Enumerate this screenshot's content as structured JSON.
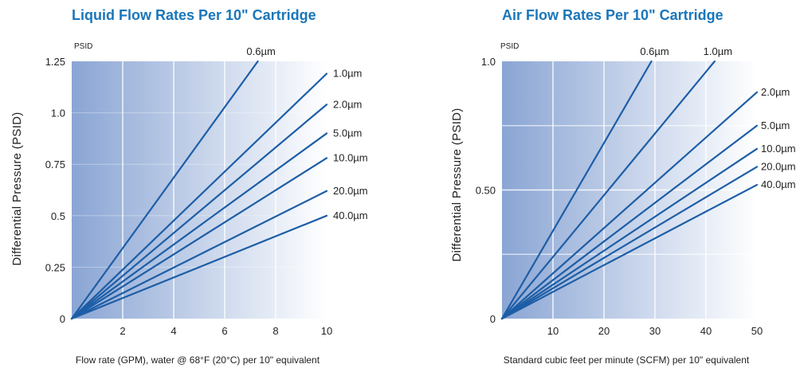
{
  "chart_data": [
    {
      "type": "line",
      "title": "Liquid Flow Rates Per 10\" Cartridge",
      "ylabel": "Differential Pressure (PSID)",
      "yunit": "PSID",
      "xlabel": "Flow rate (GPM), water @ 68°F (20°C) per 10\" equivalent",
      "xlim": [
        0,
        10
      ],
      "ylim": [
        0,
        1.25
      ],
      "xticks": [
        "2",
        "4",
        "6",
        "8",
        "10"
      ],
      "xtick_values": [
        2,
        4,
        6,
        8,
        10
      ],
      "yticks": [
        "0",
        "0.25",
        "0.5",
        "0.75",
        "1.0",
        "1.25"
      ],
      "ytick_values": [
        0,
        0.25,
        0.5,
        0.75,
        1.0,
        1.25
      ],
      "grid": "vertical",
      "series": [
        {
          "name": "0.6µm",
          "x": [
            0,
            7.3
          ],
          "y": [
            0,
            1.25
          ]
        },
        {
          "name": "1.0µm",
          "x": [
            0,
            10
          ],
          "y": [
            0,
            1.19
          ]
        },
        {
          "name": "2.0µm",
          "x": [
            0,
            10
          ],
          "y": [
            0,
            1.04
          ]
        },
        {
          "name": "5.0µm",
          "x": [
            0,
            10
          ],
          "y": [
            0,
            0.9
          ]
        },
        {
          "name": "10.0µm",
          "x": [
            0,
            10
          ],
          "y": [
            0,
            0.78
          ]
        },
        {
          "name": "20.0µm",
          "x": [
            0,
            10
          ],
          "y": [
            0,
            0.62
          ]
        },
        {
          "name": "40.0µm",
          "x": [
            0,
            10
          ],
          "y": [
            0,
            0.5
          ]
        }
      ]
    },
    {
      "type": "line",
      "title": "Air Flow Rates Per 10\" Cartridge",
      "ylabel": "Differential Pressure (PSID)",
      "yunit": "PSID",
      "xlabel": "Standard cubic feet per minute (SCFM) per 10\" equivalent",
      "xlim": [
        0,
        50
      ],
      "ylim": [
        0,
        1.0
      ],
      "xticks": [
        "10",
        "20",
        "30",
        "40",
        "50"
      ],
      "xtick_values": [
        10,
        20,
        30,
        40,
        50
      ],
      "yticks": [
        "0",
        "0.50",
        "1.0"
      ],
      "ytick_values": [
        0,
        0.5,
        1.0
      ],
      "grid": "both",
      "series": [
        {
          "name": "0.6µm",
          "x": [
            0,
            29.3
          ],
          "y": [
            0,
            1.0
          ]
        },
        {
          "name": "1.0µm",
          "x": [
            0,
            41.7
          ],
          "y": [
            0,
            1.0
          ]
        },
        {
          "name": "2.0µm",
          "x": [
            0,
            50
          ],
          "y": [
            0,
            0.88
          ]
        },
        {
          "name": "5.0µm",
          "x": [
            0,
            50
          ],
          "y": [
            0,
            0.75
          ]
        },
        {
          "name": "10.0µm",
          "x": [
            0,
            50
          ],
          "y": [
            0,
            0.66
          ]
        },
        {
          "name": "20.0µm",
          "x": [
            0,
            50
          ],
          "y": [
            0,
            0.59
          ]
        },
        {
          "name": "40.0µm",
          "x": [
            0,
            50
          ],
          "y": [
            0,
            0.52
          ]
        }
      ]
    }
  ],
  "style": {
    "line_color": "#1d5ea6",
    "bg_left": "#8aa5d4",
    "bg_right": "#ffffff",
    "title_color": "#1a76b9"
  }
}
